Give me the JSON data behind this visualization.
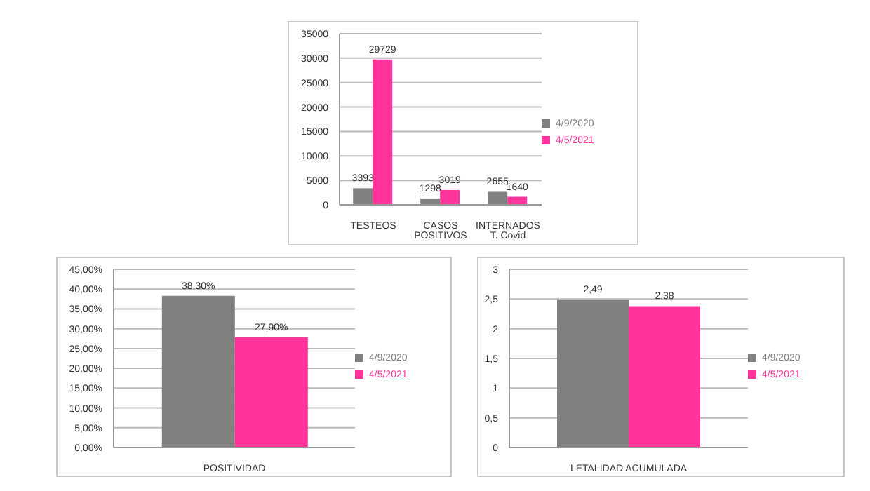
{
  "chart_data": [
    {
      "type": "bar",
      "categories": [
        "TESTEOS",
        "CASOS POSITIVOS",
        "INTERNADOS T. Covid"
      ],
      "series": [
        {
          "name": "4/9/2020",
          "color": "#808080",
          "values": [
            3393,
            1298,
            2655
          ]
        },
        {
          "name": "4/5/2021",
          "color": "#ff3399",
          "values": [
            29729,
            3019,
            1640
          ]
        }
      ],
      "ylim": [
        0,
        35000
      ],
      "yticks": [
        0,
        5000,
        10000,
        15000,
        20000,
        25000,
        30000,
        35000
      ],
      "grid": "y",
      "legend": "right",
      "data_labels": true
    },
    {
      "type": "bar",
      "categories": [
        "POSITIVIDAD"
      ],
      "series": [
        {
          "name": "4/9/2020",
          "color": "#808080",
          "values": [
            38.3
          ],
          "value_labels": [
            "38,30%"
          ]
        },
        {
          "name": "4/5/2021",
          "color": "#ff3399",
          "values": [
            27.9
          ],
          "value_labels": [
            "27,90%"
          ]
        }
      ],
      "ylim": [
        0,
        45
      ],
      "yticks": [
        {
          "value": 0,
          "label": "0,00%"
        },
        {
          "value": 5,
          "label": "5,00%"
        },
        {
          "value": 10,
          "label": "10,00%"
        },
        {
          "value": 15,
          "label": "15,00%"
        },
        {
          "value": 20,
          "label": "20,00%"
        },
        {
          "value": 25,
          "label": "25,00%"
        },
        {
          "value": 30,
          "label": "30,00%"
        },
        {
          "value": 35,
          "label": "35,00%"
        },
        {
          "value": 40,
          "label": "40,00%"
        },
        {
          "value": 45,
          "label": "45,00%"
        }
      ],
      "grid": "y",
      "legend": "right"
    },
    {
      "type": "bar",
      "categories": [
        "LETALIDAD ACUMULADA"
      ],
      "series": [
        {
          "name": "4/9/2020",
          "color": "#808080",
          "values": [
            2.49
          ],
          "value_labels": [
            "2,49"
          ]
        },
        {
          "name": "4/5/2021",
          "color": "#ff3399",
          "values": [
            2.38
          ],
          "value_labels": [
            "2,38"
          ]
        }
      ],
      "ylim": [
        0,
        3
      ],
      "yticks": [
        0,
        {
          "value": 0.5,
          "label": "0,5"
        },
        1,
        {
          "value": 1.5,
          "label": "1,5"
        },
        2,
        {
          "value": 2.5,
          "label": "2,5"
        },
        3
      ],
      "grid": "y",
      "legend": "right"
    }
  ]
}
